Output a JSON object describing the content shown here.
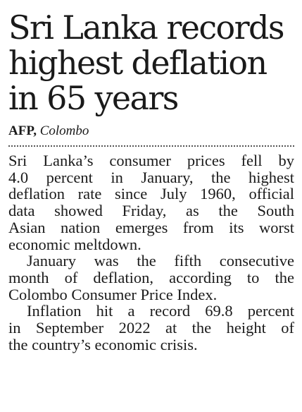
{
  "headline": {
    "lines": [
      "Sri Lanka records",
      "highest deflation",
      "in 65 years"
    ]
  },
  "byline": {
    "agency": "AFP,",
    "place": "Colombo"
  },
  "body": {
    "paragraphs": [
      {
        "lines": [
          "Sri Lanka’s consumer prices fell by",
          "4.0 percent in January, the highest",
          "deflation rate since July 1960, official",
          "data showed Friday, as the South",
          "Asian nation emerges from its worst",
          "economic meltdown."
        ]
      },
      {
        "lines": [
          "January was the fifth consecutive",
          "month of deflation, according to the",
          "Colombo Consumer Price Index."
        ]
      },
      {
        "lines": [
          "Inflation hit a record 69.8 percent",
          "in September 2022 at the height of",
          "the country’s economic crisis."
        ]
      }
    ]
  }
}
